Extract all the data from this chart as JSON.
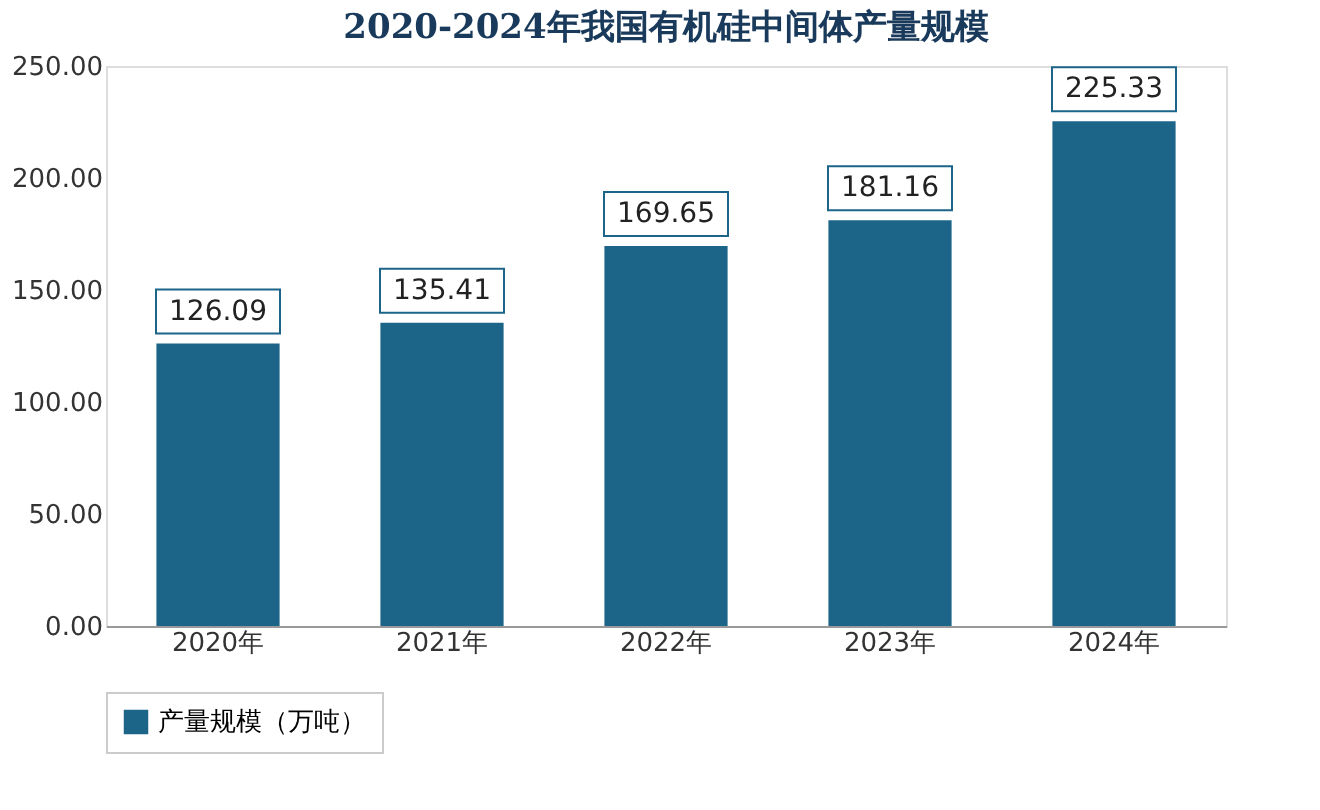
{
  "chart_data": {
    "type": "bar",
    "title": "2020-2024年我国有机硅中间体产量规模",
    "categories": [
      "2020年",
      "2021年",
      "2022年",
      "2023年",
      "2024年"
    ],
    "series": [
      {
        "name": "产量规模（万吨）",
        "color": "#1d6489",
        "values": [
          126.09,
          135.41,
          169.65,
          181.16,
          225.33
        ]
      }
    ],
    "ylim": [
      0,
      250
    ],
    "yticks": [
      {
        "value": 0,
        "label": "0.00"
      },
      {
        "value": 50,
        "label": "50.00"
      },
      {
        "value": 100,
        "label": "100.00"
      },
      {
        "value": 150,
        "label": "150.00"
      },
      {
        "value": 200,
        "label": "200.00"
      },
      {
        "value": 250,
        "label": "250.00"
      }
    ],
    "data_labels": true,
    "grid": false,
    "legend": "bottom"
  }
}
